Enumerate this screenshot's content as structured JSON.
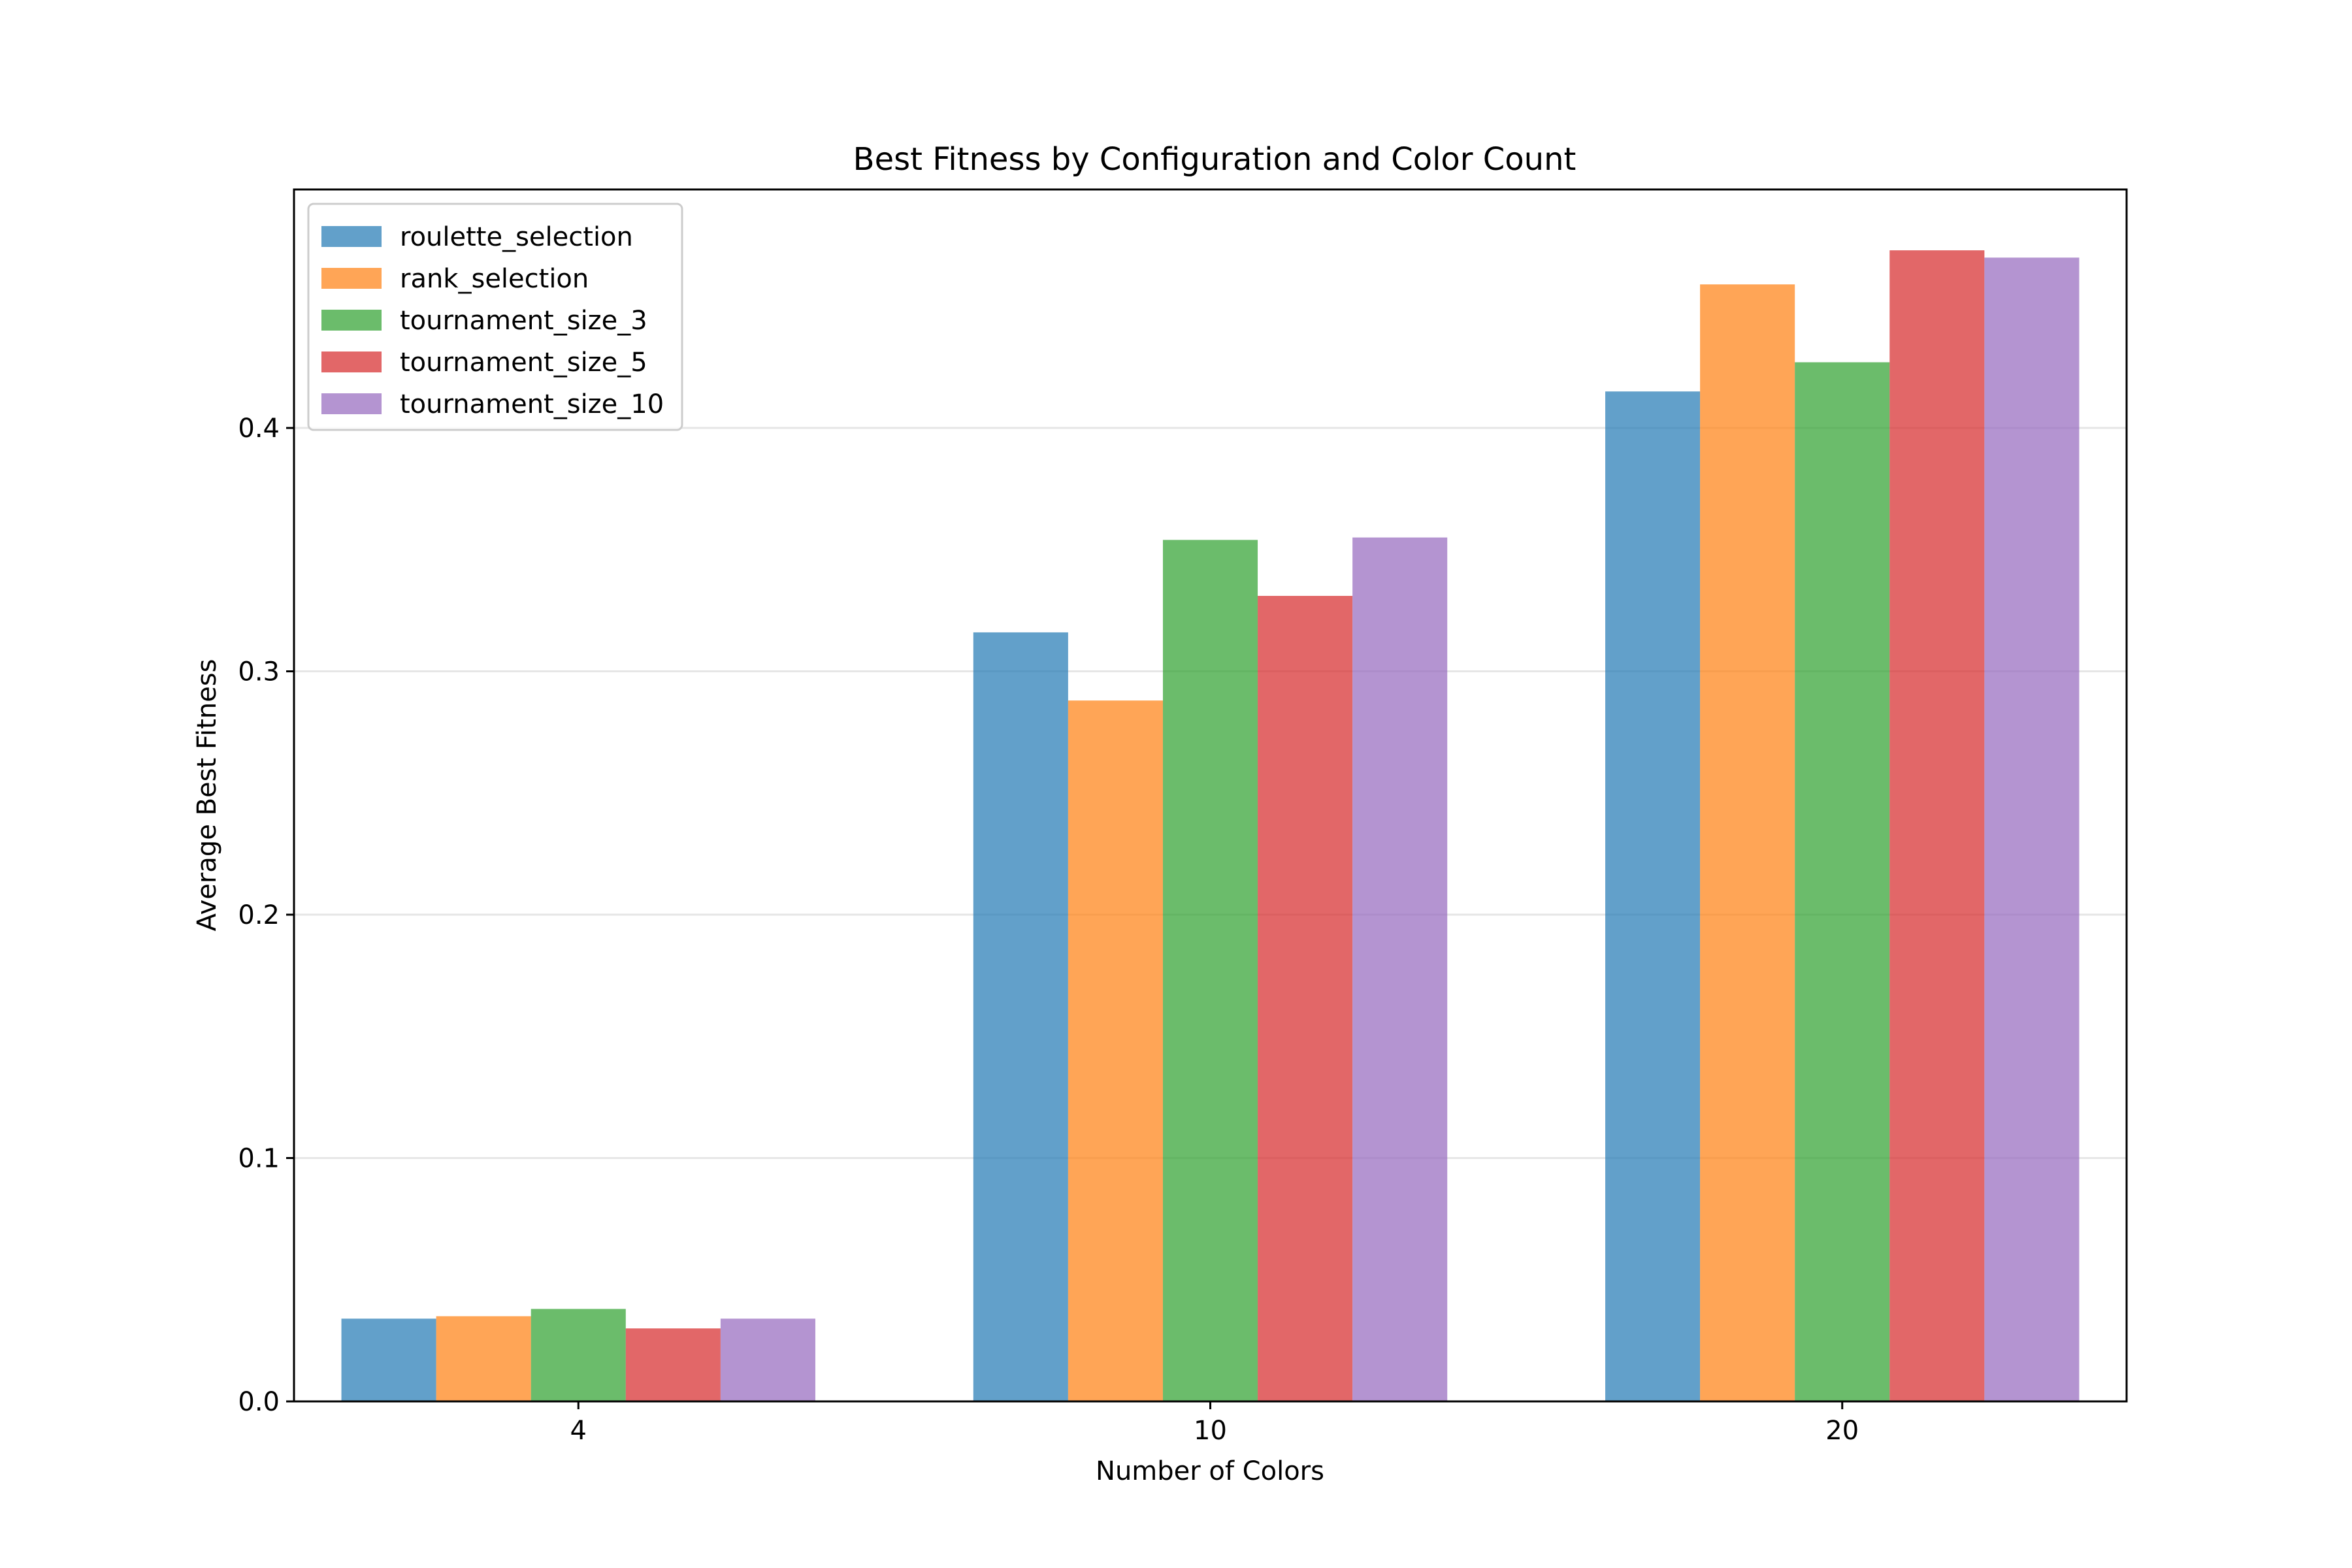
{
  "chart_data": {
    "type": "bar",
    "title": "Best Fitness by Configuration and Color Count",
    "xlabel": "Number of Colors",
    "ylabel": "Average Best Fitness",
    "categories": [
      "4",
      "10",
      "20"
    ],
    "ylim": [
      0,
      0.498
    ],
    "yticks": [
      "0.0",
      "0.1",
      "0.2",
      "0.3",
      "0.4"
    ],
    "grid": "horizontal",
    "legend_position": "top-left",
    "series": [
      {
        "name": "roulette_selection",
        "color": "#1f77b4",
        "values": [
          0.034,
          0.316,
          0.415
        ]
      },
      {
        "name": "rank_selection",
        "color": "#ff7f0e",
        "values": [
          0.035,
          0.288,
          0.459
        ]
      },
      {
        "name": "tournament_size_3",
        "color": "#2ca02c",
        "values": [
          0.038,
          0.354,
          0.427
        ]
      },
      {
        "name": "tournament_size_5",
        "color": "#d62728",
        "values": [
          0.03,
          0.331,
          0.473
        ]
      },
      {
        "name": "tournament_size_10",
        "color": "#9467bd",
        "values": [
          0.034,
          0.355,
          0.47
        ]
      }
    ]
  }
}
